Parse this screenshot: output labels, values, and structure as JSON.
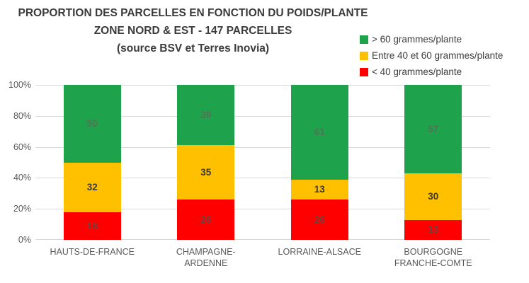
{
  "title": {
    "line1": "PROPORTION DES PARCELLES EN FONCTION DU POIDS/PLANTE",
    "line2": "ZONE NORD & EST - 147 PARCELLES",
    "line3": "(source BSV et Terres Inovia)"
  },
  "legend": {
    "position": "top-right",
    "items": [
      {
        "label": "> 60 grammes/plante",
        "color": "#1ea24b"
      },
      {
        "label": "Entre 40 et 60 grammes/plante",
        "color": "#ffc000"
      },
      {
        "label": "< 40 grammes/plante",
        "color": "#fe0000"
      }
    ]
  },
  "y_axis": {
    "ticks": [
      "0%",
      "20%",
      "40%",
      "60%",
      "80%",
      "100%"
    ],
    "min": 0,
    "max": 100
  },
  "chart_data": {
    "type": "bar",
    "subtype": "stacked-percentage",
    "title": "PROPORTION DES PARCELLES EN FONCTION DU POIDS/PLANTE",
    "subtitle": "ZONE NORD & EST - 147 PARCELLES",
    "source_note": "(source BSV et Terres Inovia)",
    "categories": [
      "HAUTS-DE-FRANCE",
      "CHAMPAGNE-ARDENNE",
      "LORRAINE-ALSACE",
      "BOURGOGNE FRANCHE-COMTE"
    ],
    "series": [
      {
        "key": "gt60",
        "name": "> 60 grammes/plante",
        "color": "#1ea24b",
        "label_color": "#537355",
        "values": [
          50,
          39,
          61,
          57
        ]
      },
      {
        "key": "mid40_60",
        "name": "Entre 40 et 60 grammes/plante",
        "color": "#ffc000",
        "label_color": "#3a3a3a",
        "values": [
          32,
          35,
          13,
          30
        ]
      },
      {
        "key": "lt40",
        "name": "< 40 grammes/plante",
        "color": "#fe0000",
        "label_color": "#744141",
        "values": [
          18,
          26,
          26,
          13
        ]
      }
    ],
    "ylim": [
      0,
      100
    ],
    "grid": true,
    "gridline_color": "#d9d9d9",
    "legend_position": "top-right"
  }
}
